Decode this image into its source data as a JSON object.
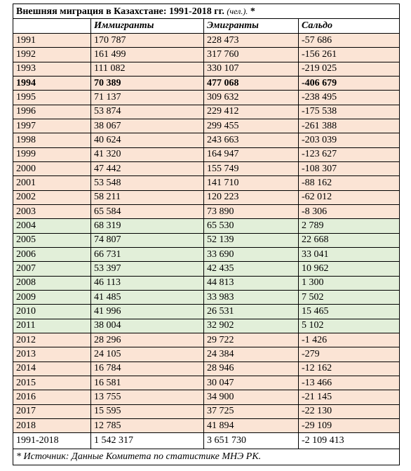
{
  "table": {
    "title": "Внешняя миграция в Казахстане: 1991-2018 гг.",
    "unit": "(чел.).",
    "title_mark": "*",
    "header": [
      "",
      "Иммигранты",
      "Эмигранты",
      "Сальдо"
    ],
    "rows": [
      {
        "cells": [
          "1991",
          "170 787",
          "228 473",
          "-57 686"
        ],
        "color": "#fbe4d5"
      },
      {
        "cells": [
          "1992",
          "161 499",
          "317 760",
          "-156 261"
        ],
        "color": "#fbe4d5"
      },
      {
        "cells": [
          "1993",
          "111 082",
          "330 107",
          "-219 025"
        ],
        "color": "#fbe4d5"
      },
      {
        "cells": [
          "1994",
          "70 389",
          "477 068",
          "-406 679"
        ],
        "color": "#fbe4d5",
        "bold": true
      },
      {
        "cells": [
          "1995",
          "71 137",
          "309 632",
          "-238 495"
        ],
        "color": "#fbe4d5"
      },
      {
        "cells": [
          "1996",
          "53 874",
          "229 412",
          "-175 538"
        ],
        "color": "#fbe4d5"
      },
      {
        "cells": [
          "1997",
          "38 067",
          "299 455",
          "-261 388"
        ],
        "color": "#fbe4d5"
      },
      {
        "cells": [
          "1998",
          "40 624",
          "243 663",
          "-203 039"
        ],
        "color": "#fbe4d5"
      },
      {
        "cells": [
          "1999",
          "41 320",
          "164 947",
          "-123 627"
        ],
        "color": "#fbe4d5"
      },
      {
        "cells": [
          "2000",
          "47 442",
          "155 749",
          "-108 307"
        ],
        "color": "#fbe4d5"
      },
      {
        "cells": [
          "2001",
          "53 548",
          "141 710",
          "-88 162"
        ],
        "color": "#fbe4d5"
      },
      {
        "cells": [
          "2002",
          "58 211",
          "120 223",
          "-62 012"
        ],
        "color": "#fbe4d5"
      },
      {
        "cells": [
          "2003",
          "65 584",
          "73 890",
          "-8 306"
        ],
        "color": "#fbe4d5"
      },
      {
        "cells": [
          "2004",
          "68 319",
          "65 530",
          "2 789"
        ],
        "color": "#e2efd9"
      },
      {
        "cells": [
          "2005",
          "74 807",
          "52 139",
          "22 668"
        ],
        "color": "#e2efd9"
      },
      {
        "cells": [
          "2006",
          "66 731",
          "33 690",
          "33 041"
        ],
        "color": "#e2efd9"
      },
      {
        "cells": [
          "2007",
          "53 397",
          "42 435",
          "10 962"
        ],
        "color": "#e2efd9"
      },
      {
        "cells": [
          "2008",
          "46 113",
          "44 813",
          "1 300"
        ],
        "color": "#e2efd9"
      },
      {
        "cells": [
          "2009",
          "41 485",
          "33 983",
          "7 502"
        ],
        "color": "#e2efd9"
      },
      {
        "cells": [
          "2010",
          "41 996",
          "26 531",
          "15 465"
        ],
        "color": "#e2efd9"
      },
      {
        "cells": [
          "2011",
          "38 004",
          "32 902",
          "5 102"
        ],
        "color": "#e2efd9"
      },
      {
        "cells": [
          "2012",
          "28 296",
          "29 722",
          "-1 426"
        ],
        "color": "#fbe4d5"
      },
      {
        "cells": [
          "2013",
          "24 105",
          "24 384",
          "-279"
        ],
        "color": "#fbe4d5"
      },
      {
        "cells": [
          "2014",
          "16 784",
          "28 946",
          "-12 162"
        ],
        "color": "#fbe4d5"
      },
      {
        "cells": [
          "2015",
          "16 581",
          "30 047",
          "-13 466"
        ],
        "color": "#fbe4d5"
      },
      {
        "cells": [
          "2016",
          "13 755",
          "34 900",
          "-21 145"
        ],
        "color": "#fbe4d5"
      },
      {
        "cells": [
          "2017",
          "15 595",
          "37 725",
          "-22 130"
        ],
        "color": "#fbe4d5"
      },
      {
        "cells": [
          "2018",
          "12 785",
          "41 894",
          "-29 109"
        ],
        "color": "#fbe4d5"
      }
    ],
    "total": [
      "1991-2018",
      "1 542 317",
      "3 651 730",
      "-2 109 413"
    ],
    "footnote": "* Источник: Данные Комитета по статистике МНЭ РК."
  }
}
